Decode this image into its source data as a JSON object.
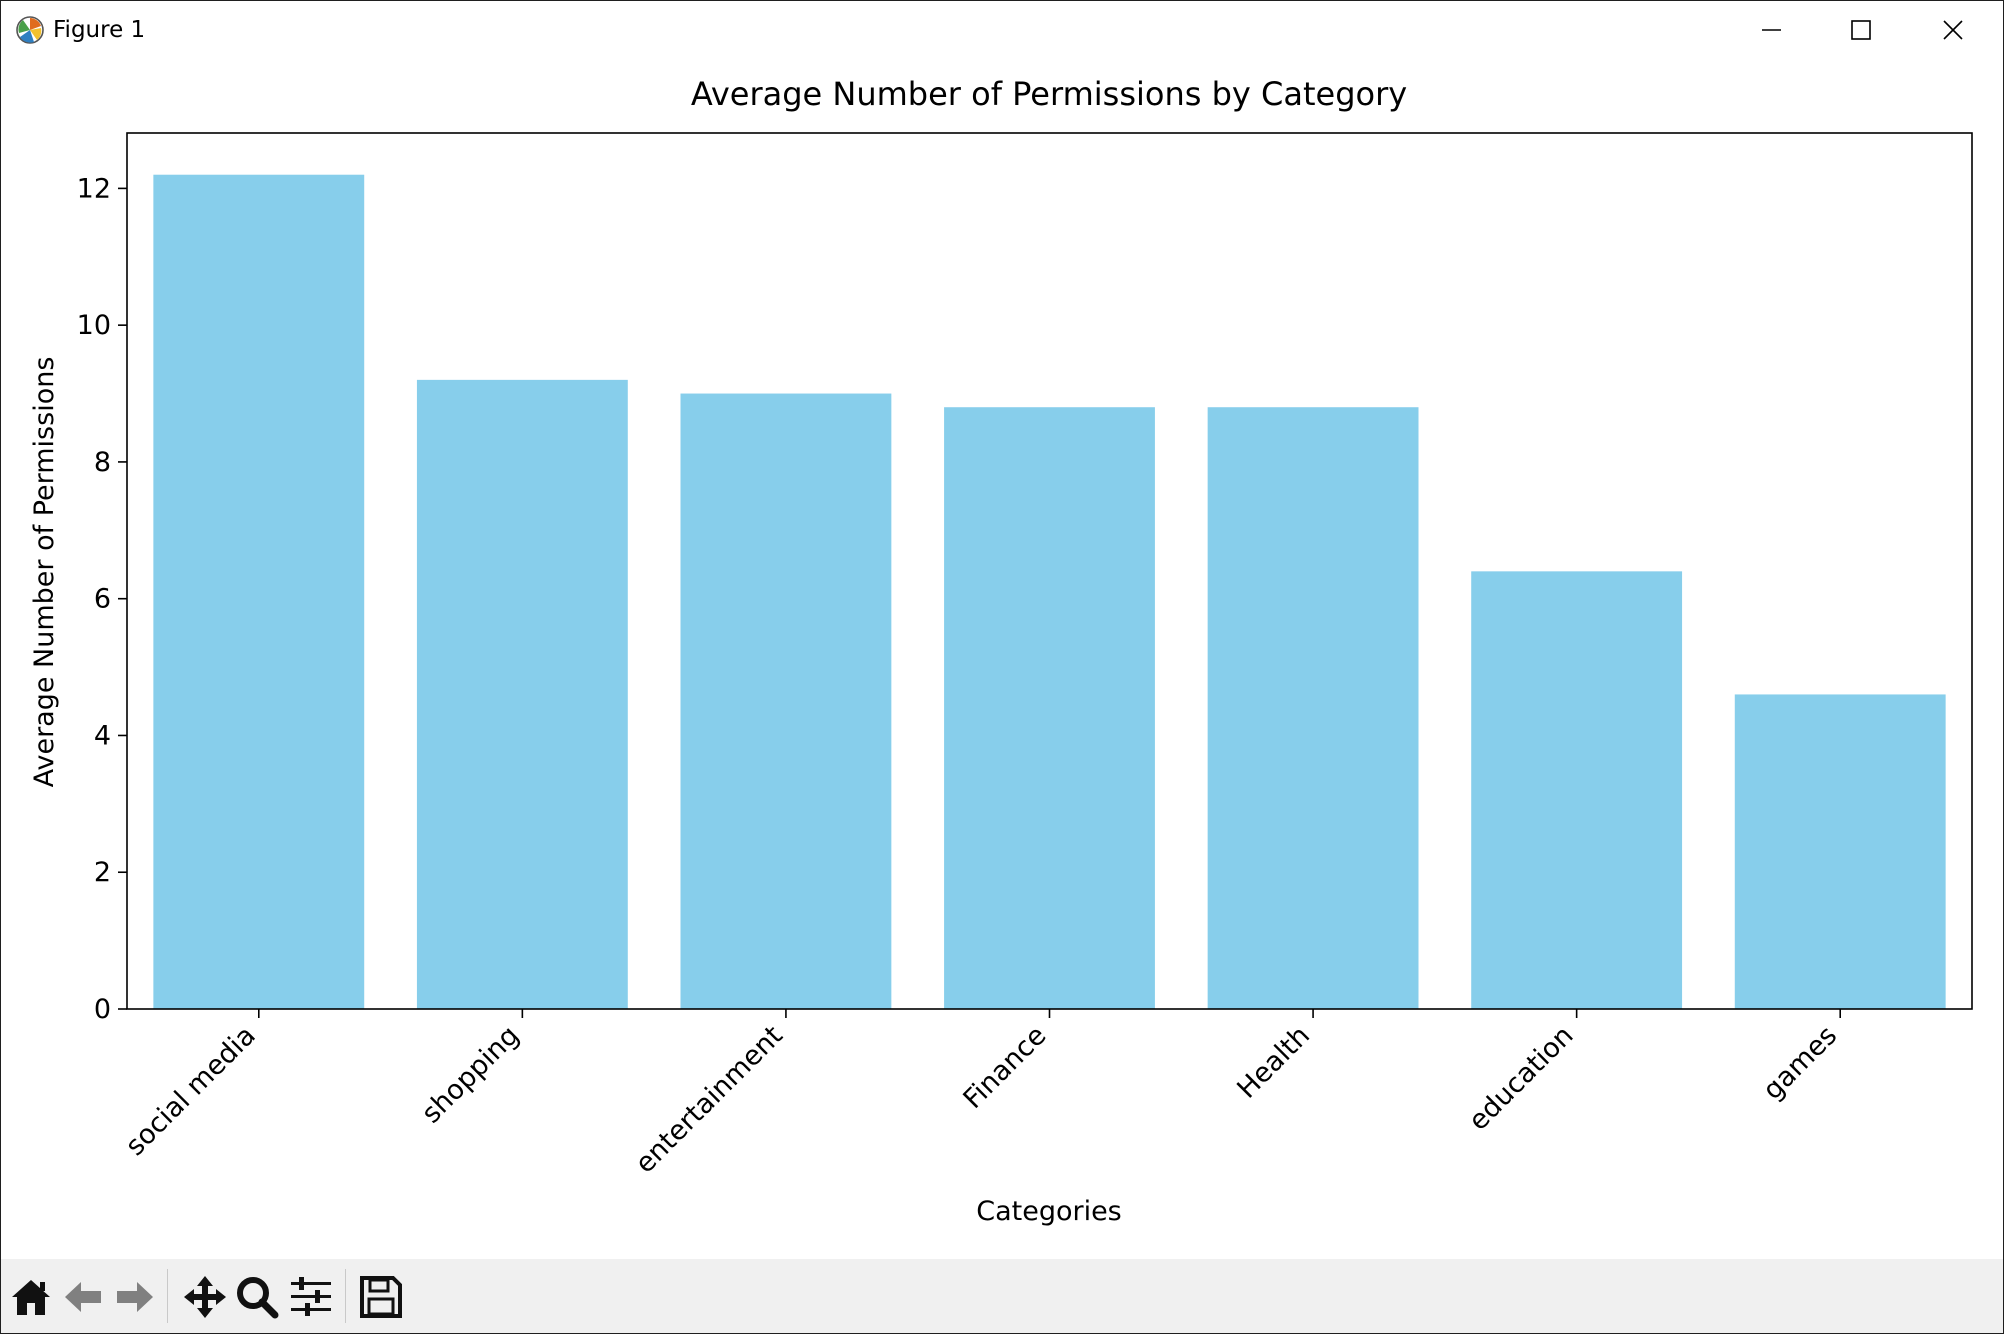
{
  "window": {
    "title": "Figure 1",
    "icons": {
      "app": "matplotlib-icon",
      "minimize": "minimize-icon",
      "maximize": "maximize-icon",
      "close": "close-icon"
    }
  },
  "chart_data": {
    "type": "bar",
    "title": "Average Number of Permissions by Category",
    "xlabel": "Categories",
    "ylabel": "Average Number of Permissions",
    "categories": [
      "social media",
      "shopping",
      "entertainment",
      "Finance",
      "Health",
      "education",
      "games"
    ],
    "values": [
      12.2,
      9.2,
      9.0,
      8.8,
      8.8,
      6.4,
      4.6
    ],
    "ylim": [
      0,
      12.81
    ],
    "yticks": [
      0,
      2,
      4,
      6,
      8,
      10,
      12
    ],
    "bar_color": "#87ceeb",
    "grid": false,
    "legend": "none"
  },
  "toolbar": {
    "buttons": [
      {
        "name": "home",
        "icon": "home-icon"
      },
      {
        "name": "back",
        "icon": "back-arrow-icon"
      },
      {
        "name": "forward",
        "icon": "forward-arrow-icon"
      },
      {
        "name": "pan",
        "icon": "move-icon"
      },
      {
        "name": "zoom",
        "icon": "magnifier-icon"
      },
      {
        "name": "configure-subplots",
        "icon": "sliders-icon"
      },
      {
        "name": "save",
        "icon": "floppy-disk-icon"
      }
    ]
  }
}
